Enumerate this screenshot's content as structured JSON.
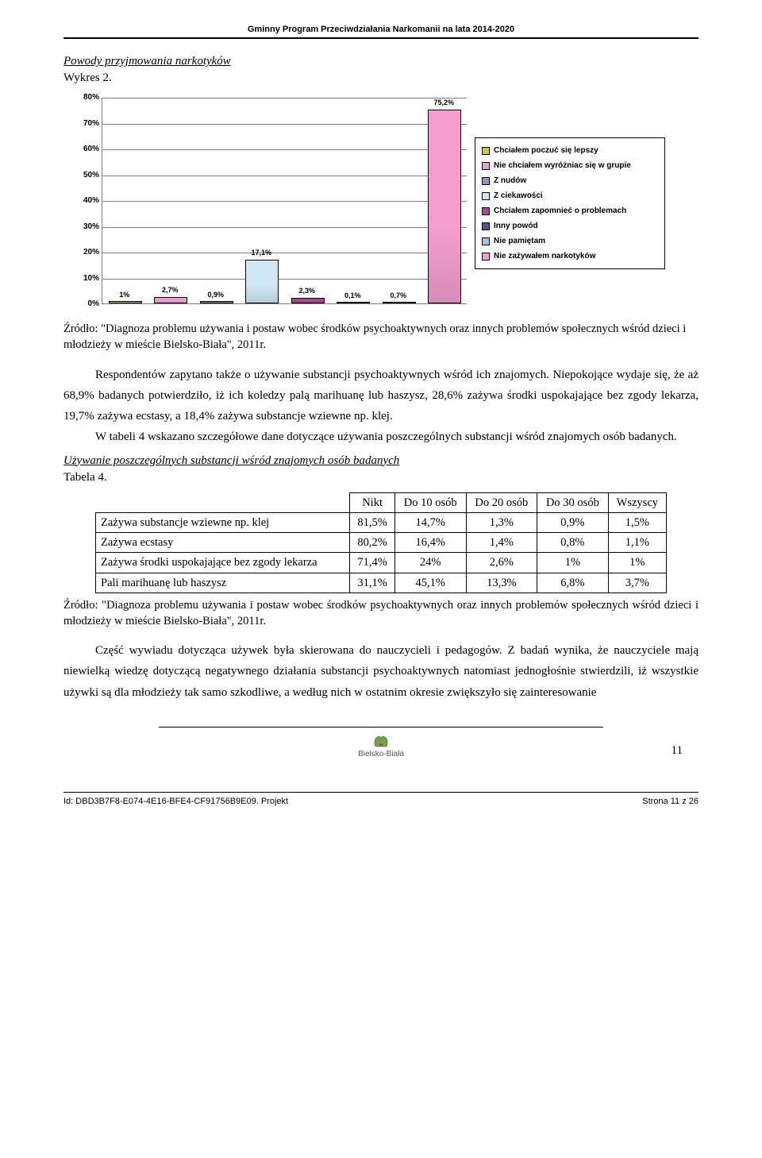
{
  "header": "Gminny Program Przeciwdziałania Narkomanii na lata 2014-2020",
  "chart": {
    "title": "Powody przyjmowania narkotyków",
    "subtitle": "Wykres 2.",
    "ymax": 80,
    "ytick_step": 10,
    "bars": [
      {
        "label": "1%",
        "value": 1.0,
        "color": "#d4c24a"
      },
      {
        "label": "2,7%",
        "value": 2.7,
        "color": "#f19bd8"
      },
      {
        "label": "0,9%",
        "value": 0.9,
        "color": "#9b8fcf"
      },
      {
        "label": "17,1%",
        "value": 17.1,
        "color": "#cfe7f5"
      },
      {
        "label": "2,3%",
        "value": 2.3,
        "color": "#a34b8f"
      },
      {
        "label": "0,1%",
        "value": 0.1,
        "color": "#4a5a9e"
      },
      {
        "label": "0,7%",
        "value": 0.7,
        "color": "#9ec5e8"
      },
      {
        "label": "75,2%",
        "value": 75.2,
        "color": "#f49fd0"
      }
    ],
    "legend": [
      {
        "text": "Chciałem poczuć się lepszy",
        "color": "#d4c24a"
      },
      {
        "text": "Nie chciałem wyróżniac się w grupie",
        "color": "#f19bd8"
      },
      {
        "text": "Z nudów",
        "color": "#9b8fcf"
      },
      {
        "text": "Z ciekawości",
        "color": "#cfe7f5"
      },
      {
        "text": "Chciałem zapomnieć o problemach",
        "color": "#a34b8f"
      },
      {
        "text": "Inny powód",
        "color": "#4a5a9e"
      },
      {
        "text": "Nie pamiętam",
        "color": "#9ec5e8"
      },
      {
        "text": "Nie zażywałem narkotyków",
        "color": "#f49fd0"
      }
    ]
  },
  "source_text": "Źródło: \"Diagnoza problemu używania i postaw wobec środków psychoaktywnych oraz innych problemów społecznych wśród dzieci i młodzieży w mieście Bielsko-Biała\", 2011r.",
  "para1": "Respondentów zapytano także o używanie substancji psychoaktywnych wśród ich znajomych. Niepokojące wydaje się, że aż 68,9% badanych potwierdziło, iż ich koledzy palą marihuanę lub haszysz, 28,6% zażywa środki uspokajające bez zgody lekarza, 19,7% zażywa ecstasy, a 18,4% zażywa substancje wziewne np. klej.",
  "para2": "W tabeli 4 wskazano szczegółowe dane dotyczące używania poszczególnych substancji wśród znajomych osób badanych.",
  "table": {
    "title": "Używanie poszczególnych substancji wśród znajomych osób badanych",
    "subtitle": "Tabela 4.",
    "columns": [
      "",
      "Nikt",
      "Do 10 osób",
      "Do 20 osób",
      "Do 30 osób",
      "Wszyscy"
    ],
    "rows": [
      {
        "label": "Zażywa substancje wziewne np. klej",
        "vals": [
          "81,5%",
          "14,7%",
          "1,3%",
          "0,9%",
          "1,5%"
        ]
      },
      {
        "label": "Zażywa ecstasy",
        "vals": [
          "80,2%",
          "16,4%",
          "1,4%",
          "0,8%",
          "1,1%"
        ]
      },
      {
        "label": "Zażywa środki uspokajające bez zgody lekarza",
        "vals": [
          "71,4%",
          "24%",
          "2,6%",
          "1%",
          "1%"
        ]
      },
      {
        "label": "Pali marihuanę lub haszysz",
        "vals": [
          "31,1%",
          "45,1%",
          "13,3%",
          "6,8%",
          "3,7%"
        ]
      }
    ]
  },
  "source_text2": "Źródło: \"Diagnoza problemu używania i postaw wobec środków psychoaktywnych oraz innych problemów społecznych wśród dzieci i młodzieży w mieście Bielsko-Biała\", 2011r.",
  "para3": "Część wywiadu dotycząca używek była skierowana do nauczycieli i pedagogów. Z badań wynika, że nauczyciele mają niewielką wiedzę dotyczącą negatywnego działania substancji psychoaktywnych natomiast jednogłośnie stwierdzili, iż wszystkie używki są dla młodzieży tak samo szkodliwe, a według nich w ostatnim okresie zwiększyło się zainteresowanie",
  "logo_caption": "Bielsko-Biała",
  "page_number": "11",
  "footer_left": "Id: DBD3B7F8-E074-4E16-BFE4-CF91756B9E09. Projekt",
  "footer_right": "Strona 11 z 26"
}
